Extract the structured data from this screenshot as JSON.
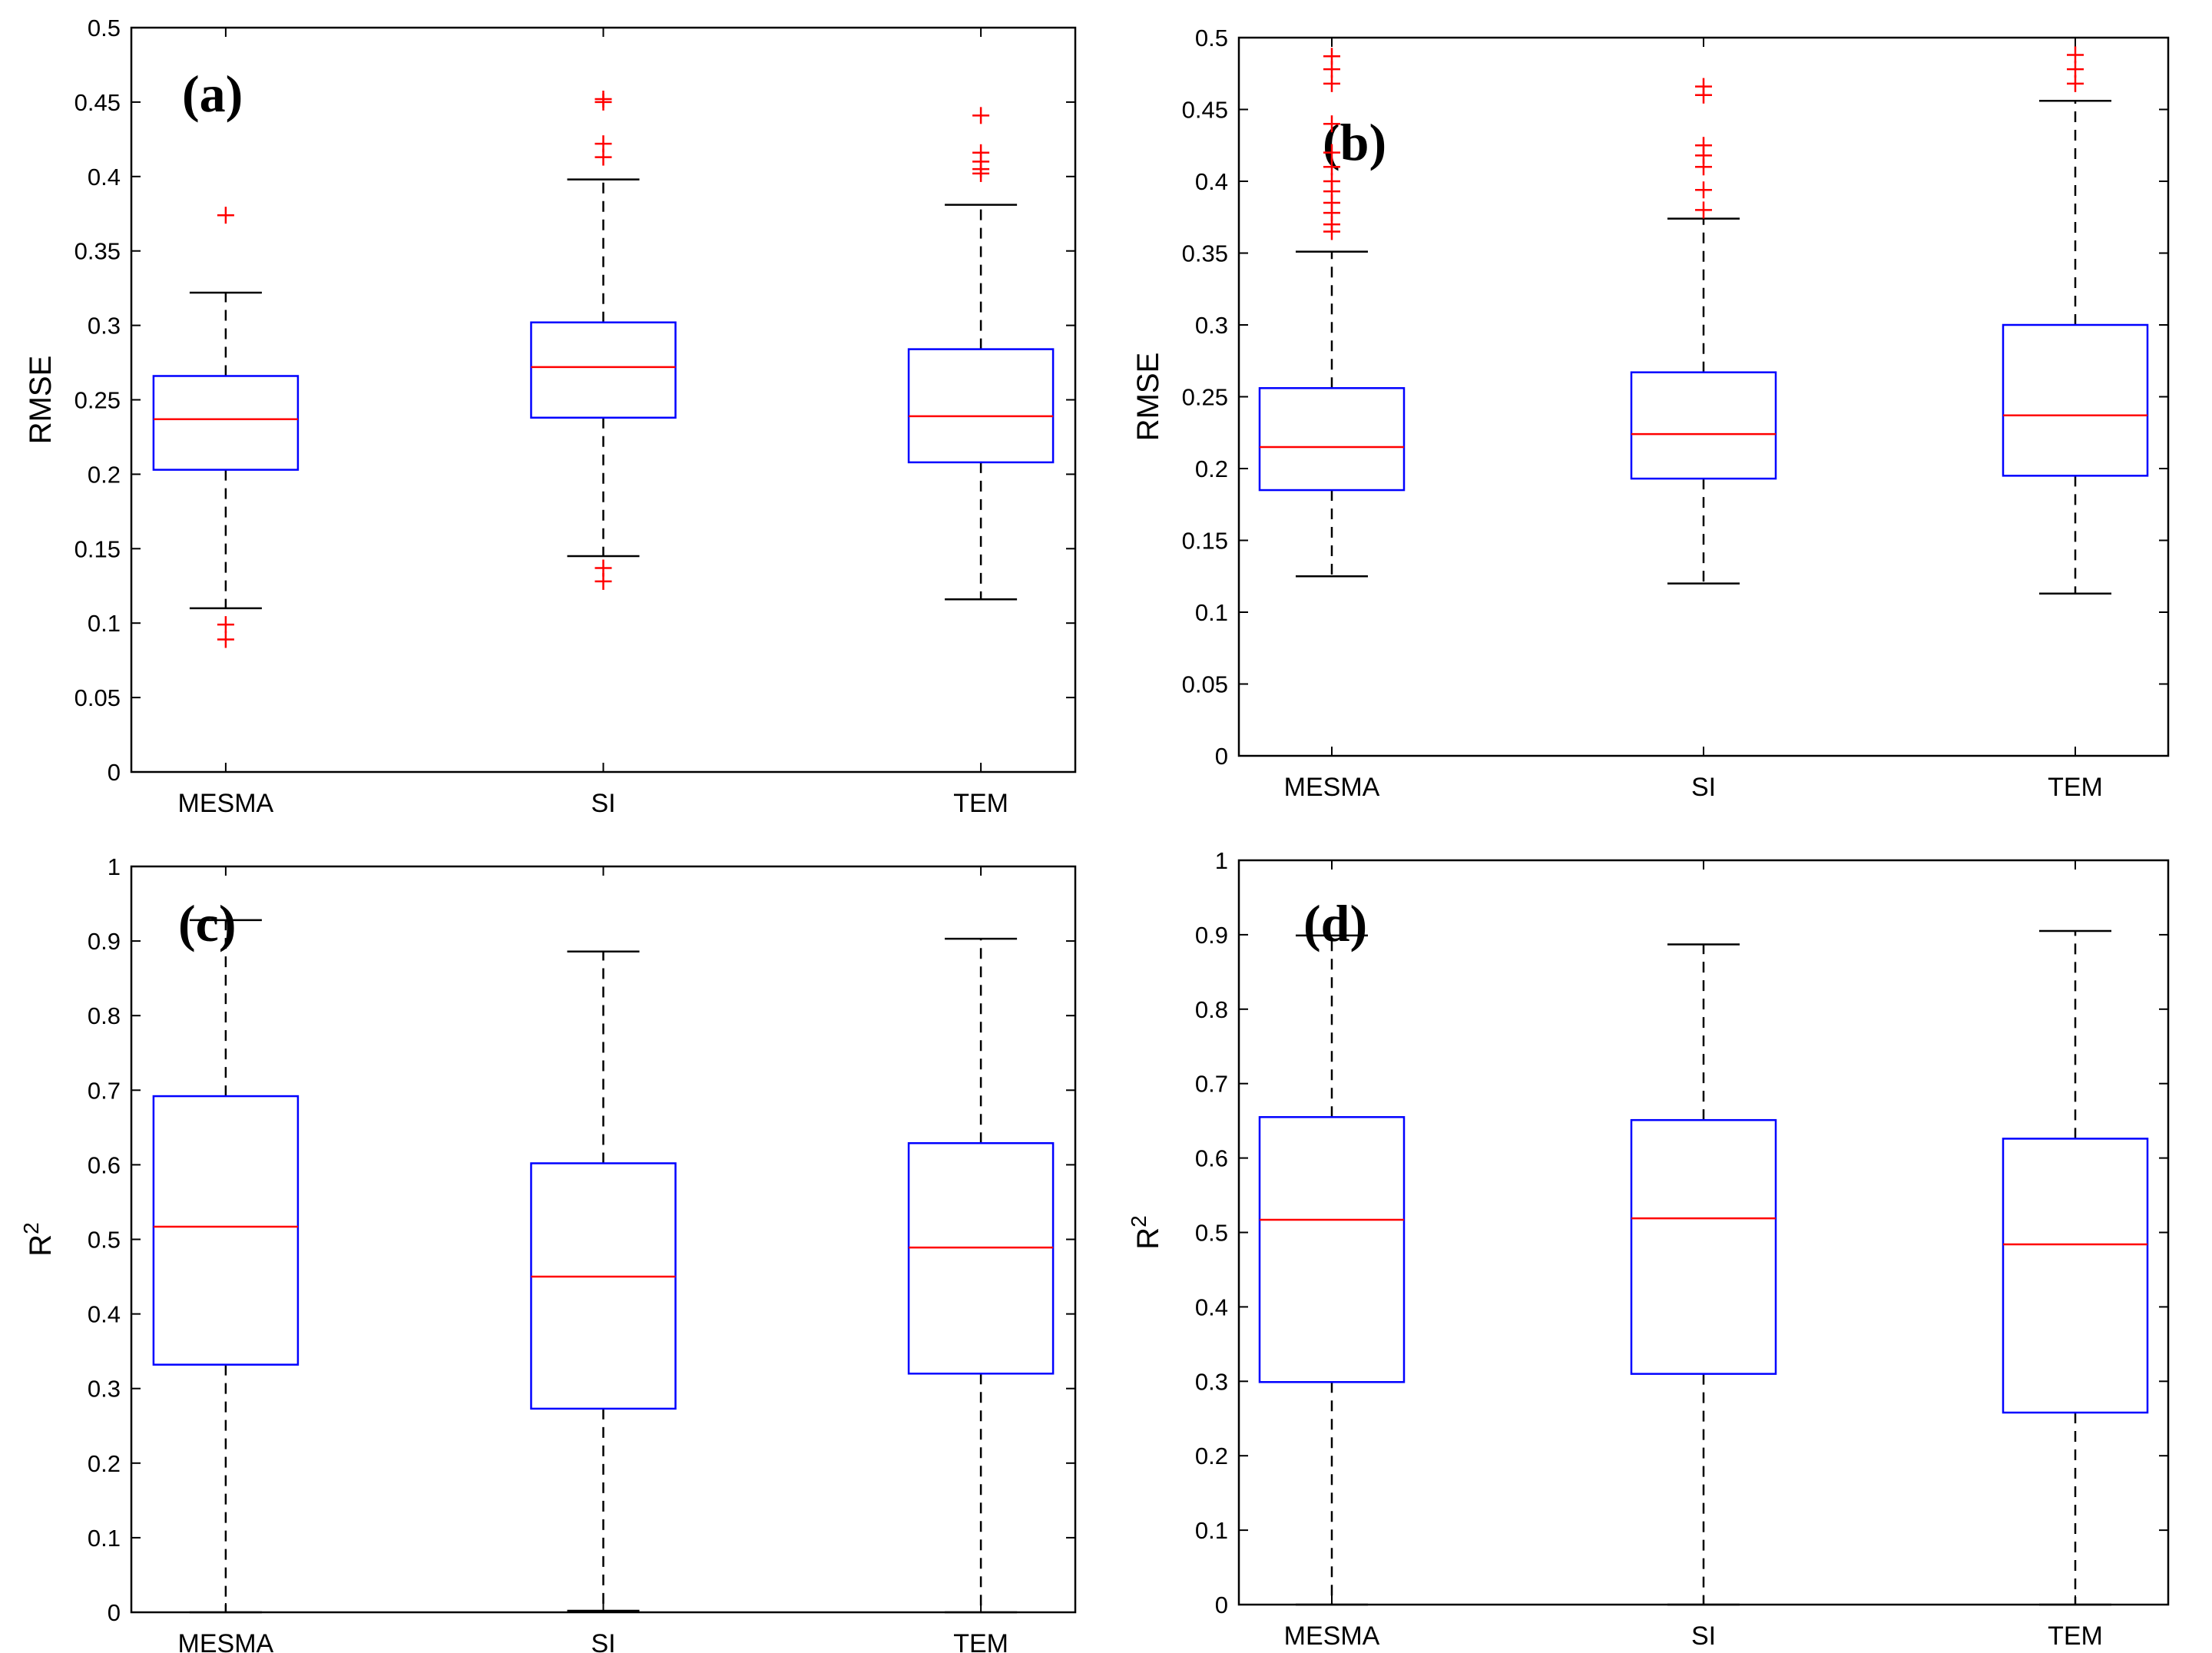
{
  "colors": {
    "box": "#0000ff",
    "median": "#ff0000",
    "whisker": "#000000",
    "outlier": "#ff0000",
    "axis": "#000000"
  },
  "chart_data": [
    {
      "type": "boxplot",
      "panel_label": "(a)",
      "ylabel": "RMSE",
      "ylabel_superscript": "",
      "ylim": [
        0,
        0.5
      ],
      "yticks": [
        "0",
        "0.05",
        "0.1",
        "0.15",
        "0.2",
        "0.25",
        "0.3",
        "0.35",
        "0.4",
        "0.45",
        "0.5"
      ],
      "categories": [
        "MESMA",
        "SI",
        "TEM"
      ],
      "boxes": [
        {
          "name": "MESMA",
          "whisker_low": 0.11,
          "q1": 0.203,
          "median": 0.237,
          "q3": 0.266,
          "whisker_high": 0.322,
          "outliers": [
            0.374,
            0.099,
            0.089
          ]
        },
        {
          "name": "SI",
          "whisker_low": 0.145,
          "q1": 0.238,
          "median": 0.272,
          "q3": 0.302,
          "whisker_high": 0.398,
          "outliers": [
            0.452,
            0.45,
            0.422,
            0.413,
            0.137,
            0.128
          ]
        },
        {
          "name": "TEM",
          "whisker_low": 0.116,
          "q1": 0.208,
          "median": 0.239,
          "q3": 0.284,
          "whisker_high": 0.381,
          "outliers": [
            0.441,
            0.416,
            0.41,
            0.405,
            0.402
          ]
        }
      ]
    },
    {
      "type": "boxplot",
      "panel_label": "(b)",
      "ylabel": "RMSE",
      "ylabel_superscript": "",
      "ylim": [
        0,
        0.5
      ],
      "yticks": [
        "0",
        "0.05",
        "0.1",
        "0.15",
        "0.2",
        "0.25",
        "0.3",
        "0.35",
        "0.4",
        "0.45",
        "0.5"
      ],
      "categories": [
        "MESMA",
        "SI",
        "TEM"
      ],
      "boxes": [
        {
          "name": "MESMA",
          "whisker_low": 0.125,
          "q1": 0.185,
          "median": 0.215,
          "q3": 0.256,
          "whisker_high": 0.351,
          "outliers": [
            0.487,
            0.478,
            0.468,
            0.44,
            0.42,
            0.41,
            0.4,
            0.393,
            0.385,
            0.378,
            0.37,
            0.365
          ]
        },
        {
          "name": "SI",
          "whisker_low": 0.12,
          "q1": 0.193,
          "median": 0.224,
          "q3": 0.267,
          "whisker_high": 0.374,
          "outliers": [
            0.466,
            0.46,
            0.425,
            0.418,
            0.41,
            0.394,
            0.38
          ]
        },
        {
          "name": "TEM",
          "whisker_low": 0.113,
          "q1": 0.195,
          "median": 0.237,
          "q3": 0.3,
          "whisker_high": 0.456,
          "outliers": [
            0.488,
            0.478,
            0.468
          ]
        }
      ]
    },
    {
      "type": "boxplot",
      "panel_label": "(c)",
      "ylabel": "R",
      "ylabel_superscript": "2",
      "ylim": [
        0,
        1
      ],
      "yticks": [
        "0",
        "0.1",
        "0.2",
        "0.3",
        "0.4",
        "0.5",
        "0.6",
        "0.7",
        "0.8",
        "0.9",
        "1"
      ],
      "categories": [
        "MESMA",
        "SI",
        "TEM"
      ],
      "boxes": [
        {
          "name": "MESMA",
          "whisker_low": 0.0,
          "q1": 0.332,
          "median": 0.517,
          "q3": 0.692,
          "whisker_high": 0.928,
          "outliers": []
        },
        {
          "name": "SI",
          "whisker_low": 0.002,
          "q1": 0.273,
          "median": 0.45,
          "q3": 0.602,
          "whisker_high": 0.886,
          "outliers": []
        },
        {
          "name": "TEM",
          "whisker_low": 0.0,
          "q1": 0.32,
          "median": 0.489,
          "q3": 0.629,
          "whisker_high": 0.903,
          "outliers": []
        }
      ]
    },
    {
      "type": "boxplot",
      "panel_label": "(d)",
      "ylabel": "R",
      "ylabel_superscript": "2",
      "ylim": [
        0,
        1
      ],
      "yticks": [
        "0",
        "0.1",
        "0.2",
        "0.3",
        "0.4",
        "0.5",
        "0.6",
        "0.7",
        "0.8",
        "0.9",
        "1"
      ],
      "categories": [
        "MESMA",
        "SI",
        "TEM"
      ],
      "boxes": [
        {
          "name": "MESMA",
          "whisker_low": 0.0,
          "q1": 0.299,
          "median": 0.517,
          "q3": 0.655,
          "whisker_high": 0.899,
          "outliers": []
        },
        {
          "name": "SI",
          "whisker_low": 0.0,
          "q1": 0.31,
          "median": 0.519,
          "q3": 0.651,
          "whisker_high": 0.887,
          "outliers": []
        },
        {
          "name": "TEM",
          "whisker_low": 0.0,
          "q1": 0.258,
          "median": 0.484,
          "q3": 0.626,
          "whisker_high": 0.905,
          "outliers": []
        }
      ]
    }
  ]
}
